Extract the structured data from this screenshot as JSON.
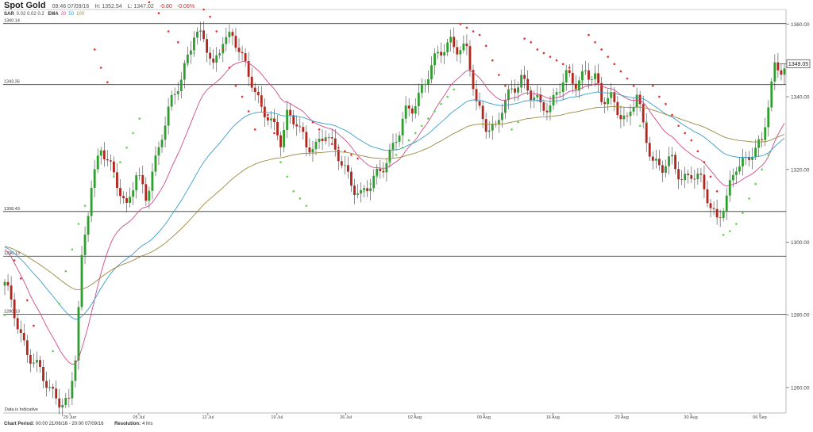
{
  "header": {
    "symbol": "Spot Gold",
    "time": "09:46 07/09/16",
    "high": "H: 1352.54",
    "low": "L: 1347.02",
    "change": "-0.80",
    "change_pct": "-0.06%",
    "sar_label": "SAR",
    "sar_params": "0.02  0.02  0.2",
    "ema_label": "EMA",
    "ema_20": "20",
    "ema_50": "50",
    "ema_100": "100"
  },
  "footer": {
    "period_label": "Chart Period:",
    "period_value": "00:00 21/06/16 - 20:00 07/09/16",
    "resolution_label": "Resolution:",
    "resolution_value": "4 hrs"
  },
  "colors": {
    "up": "#2e9e2e",
    "down": "#b3261e",
    "ema20": "#d04a8c",
    "ema50": "#3a9ecb",
    "ema100": "#9a8a3c",
    "sar_up": "#5ed44a",
    "sar_down": "#e53030",
    "hline": "#333333"
  },
  "chart_data": {
    "type": "candlestick",
    "instrument": "Spot Gold",
    "resolution": "4 hrs",
    "ylim": [
      1253,
      1364
    ],
    "y_ticks": [
      1260.0,
      1280.0,
      1300.0,
      1320.0,
      1340.0,
      1360.0
    ],
    "y_tick_labels": [
      "1260.00",
      "1280.00",
      "1300.00",
      "1320.00",
      "1340.00",
      "1360.00"
    ],
    "x_ticks": [
      "29 Jun",
      "05 Jul",
      "12 Jul",
      "19 Jul",
      "26 Jul",
      "02 Aug",
      "09 Aug",
      "16 Aug",
      "23 Aug",
      "30 Aug",
      "06 Sep"
    ],
    "horizontal_levels": [
      {
        "value": 1360.14,
        "label": "1360.14"
      },
      {
        "value": 1343.35,
        "label": "1343.35"
      },
      {
        "value": 1308.43,
        "label": "1308.43"
      },
      {
        "value": 1296.13,
        "label": "1296.13"
      },
      {
        "value": 1280.13,
        "label": "1280.13"
      }
    ],
    "last_price": 1349.05,
    "last_price_label": "1349.05",
    "annotation": "Data is Indicative",
    "indicators": [
      {
        "name": "SAR",
        "params": [
          0.02,
          0.02,
          0.2
        ]
      },
      {
        "name": "EMA",
        "periods": [
          20,
          50,
          100
        ]
      }
    ],
    "close_path": [
      [
        0,
        1288
      ],
      [
        7,
        1270
      ],
      [
        12,
        1262
      ],
      [
        17,
        1257
      ],
      [
        20,
        1255
      ],
      [
        22,
        1268
      ],
      [
        24,
        1295
      ],
      [
        27,
        1317
      ],
      [
        30,
        1325
      ],
      [
        33,
        1320
      ],
      [
        36,
        1315
      ],
      [
        38,
        1310
      ],
      [
        41,
        1318
      ],
      [
        44,
        1312
      ],
      [
        46,
        1320
      ],
      [
        49,
        1330
      ],
      [
        52,
        1338
      ],
      [
        55,
        1345
      ],
      [
        57,
        1352
      ],
      [
        59,
        1358
      ],
      [
        62,
        1355
      ],
      [
        65,
        1348
      ],
      [
        68,
        1357
      ],
      [
        71,
        1356
      ],
      [
        74,
        1350
      ],
      [
        77,
        1345
      ],
      [
        80,
        1337
      ],
      [
        83,
        1332
      ],
      [
        86,
        1328
      ],
      [
        88,
        1336
      ],
      [
        91,
        1333
      ],
      [
        94,
        1325
      ],
      [
        97,
        1327
      ],
      [
        100,
        1331
      ],
      [
        103,
        1324
      ],
      [
        106,
        1320
      ],
      [
        108,
        1317
      ],
      [
        111,
        1313
      ],
      [
        114,
        1315
      ],
      [
        117,
        1320
      ],
      [
        120,
        1325
      ],
      [
        123,
        1330
      ],
      [
        125,
        1335
      ],
      [
        127,
        1337
      ],
      [
        130,
        1343
      ],
      [
        133,
        1348
      ],
      [
        136,
        1352
      ],
      [
        139,
        1356
      ],
      [
        141,
        1354
      ],
      [
        144,
        1352
      ],
      [
        147,
        1338
      ],
      [
        150,
        1333
      ],
      [
        153,
        1331
      ],
      [
        155,
        1336
      ],
      [
        158,
        1342
      ],
      [
        161,
        1346
      ],
      [
        164,
        1340
      ],
      [
        167,
        1337
      ],
      [
        170,
        1338
      ],
      [
        172,
        1342
      ],
      [
        175,
        1345
      ],
      [
        178,
        1343
      ],
      [
        181,
        1348
      ],
      [
        184,
        1345
      ],
      [
        186,
        1338
      ],
      [
        189,
        1340
      ],
      [
        192,
        1336
      ],
      [
        194,
        1333
      ],
      [
        197,
        1340
      ],
      [
        199,
        1332
      ],
      [
        202,
        1323
      ],
      [
        205,
        1320
      ],
      [
        208,
        1322
      ],
      [
        211,
        1318
      ],
      [
        214,
        1319
      ],
      [
        217,
        1316
      ],
      [
        220,
        1310
      ],
      [
        222,
        1307
      ],
      [
        225,
        1312
      ],
      [
        228,
        1320
      ],
      [
        231,
        1323
      ],
      [
        233,
        1326
      ],
      [
        236,
        1327
      ],
      [
        238,
        1337
      ],
      [
        240,
        1348
      ],
      [
        243,
        1349
      ]
    ],
    "sar_points": [
      [
        0,
        1280,
        "up"
      ],
      [
        3,
        1295,
        "down"
      ],
      [
        5,
        1290,
        "down"
      ],
      [
        7,
        1284,
        "down"
      ],
      [
        9,
        1277,
        "down"
      ],
      [
        15,
        1270,
        "up"
      ],
      [
        17,
        1283,
        "up"
      ],
      [
        19,
        1292,
        "up"
      ],
      [
        21,
        1298,
        "up"
      ],
      [
        23,
        1305,
        "up"
      ],
      [
        25,
        1310,
        "up"
      ],
      [
        28,
        1353,
        "down"
      ],
      [
        30,
        1348,
        "down"
      ],
      [
        32,
        1344,
        "down"
      ],
      [
        34,
        1318,
        "up"
      ],
      [
        36,
        1322,
        "up"
      ],
      [
        38,
        1326,
        "up"
      ],
      [
        40,
        1330,
        "up"
      ],
      [
        42,
        1334,
        "up"
      ],
      [
        45,
        1366,
        "down"
      ],
      [
        48,
        1363,
        "down"
      ],
      [
        51,
        1358,
        "down"
      ],
      [
        54,
        1355,
        "down"
      ],
      [
        57,
        1349,
        "up"
      ],
      [
        59,
        1352,
        "up"
      ],
      [
        62,
        1364,
        "down"
      ],
      [
        64,
        1362,
        "down"
      ],
      [
        66,
        1358,
        "down"
      ],
      [
        68,
        1353,
        "down"
      ],
      [
        70,
        1348,
        "down"
      ],
      [
        72,
        1343,
        "down"
      ],
      [
        74,
        1340,
        "down"
      ],
      [
        76,
        1336,
        "down"
      ],
      [
        78,
        1331,
        "down"
      ],
      [
        80,
        1338,
        "down"
      ],
      [
        82,
        1335,
        "down"
      ],
      [
        84,
        1330,
        "down"
      ],
      [
        86,
        1322,
        "up"
      ],
      [
        88,
        1318,
        "up"
      ],
      [
        90,
        1314,
        "up"
      ],
      [
        92,
        1312,
        "up"
      ],
      [
        94,
        1310,
        "up"
      ],
      [
        96,
        1333,
        "down"
      ],
      [
        98,
        1331,
        "down"
      ],
      [
        100,
        1328,
        "down"
      ],
      [
        102,
        1327,
        "down"
      ],
      [
        104,
        1326,
        "down"
      ],
      [
        106,
        1325,
        "down"
      ],
      [
        108,
        1324,
        "down"
      ],
      [
        110,
        1323,
        "down"
      ],
      [
        112,
        1314,
        "up"
      ],
      [
        114,
        1316,
        "up"
      ],
      [
        116,
        1318,
        "up"
      ],
      [
        118,
        1320,
        "up"
      ],
      [
        120,
        1322,
        "up"
      ],
      [
        122,
        1324,
        "up"
      ],
      [
        124,
        1326,
        "up"
      ],
      [
        126,
        1328,
        "up"
      ],
      [
        128,
        1330,
        "up"
      ],
      [
        130,
        1332,
        "up"
      ],
      [
        132,
        1334,
        "up"
      ],
      [
        134,
        1336,
        "up"
      ],
      [
        136,
        1338,
        "up"
      ],
      [
        138,
        1340,
        "up"
      ],
      [
        140,
        1342,
        "up"
      ],
      [
        142,
        1360,
        "down"
      ],
      [
        144,
        1359,
        "down"
      ],
      [
        146,
        1358,
        "down"
      ],
      [
        148,
        1357,
        "down"
      ],
      [
        150,
        1354,
        "down"
      ],
      [
        152,
        1350,
        "down"
      ],
      [
        154,
        1346,
        "down"
      ],
      [
        156,
        1343,
        "down"
      ],
      [
        158,
        1331,
        "up"
      ],
      [
        160,
        1333,
        "up"
      ],
      [
        162,
        1356,
        "down"
      ],
      [
        164,
        1355,
        "down"
      ],
      [
        166,
        1353,
        "down"
      ],
      [
        168,
        1352,
        "down"
      ],
      [
        170,
        1351,
        "down"
      ],
      [
        172,
        1350,
        "down"
      ],
      [
        174,
        1349,
        "down"
      ],
      [
        176,
        1348,
        "down"
      ],
      [
        178,
        1342,
        "up"
      ],
      [
        180,
        1344,
        "up"
      ],
      [
        182,
        1357,
        "down"
      ],
      [
        184,
        1355,
        "down"
      ],
      [
        186,
        1353,
        "down"
      ],
      [
        188,
        1351,
        "down"
      ],
      [
        190,
        1349,
        "down"
      ],
      [
        192,
        1347,
        "down"
      ],
      [
        194,
        1345,
        "down"
      ],
      [
        196,
        1343,
        "down"
      ],
      [
        198,
        1332,
        "up"
      ],
      [
        200,
        1333,
        "up"
      ],
      [
        202,
        1343,
        "down"
      ],
      [
        204,
        1340,
        "down"
      ],
      [
        206,
        1338,
        "down"
      ],
      [
        208,
        1335,
        "down"
      ],
      [
        210,
        1332,
        "down"
      ],
      [
        212,
        1330,
        "down"
      ],
      [
        214,
        1328,
        "down"
      ],
      [
        216,
        1325,
        "down"
      ],
      [
        218,
        1322,
        "down"
      ],
      [
        220,
        1318,
        "down"
      ],
      [
        222,
        1314,
        "down"
      ],
      [
        224,
        1302,
        "up"
      ],
      [
        226,
        1303,
        "up"
      ],
      [
        228,
        1305,
        "up"
      ],
      [
        230,
        1308,
        "up"
      ],
      [
        232,
        1312,
        "up"
      ],
      [
        234,
        1316,
        "up"
      ],
      [
        236,
        1320,
        "up"
      ],
      [
        238,
        1324,
        "up"
      ]
    ]
  }
}
